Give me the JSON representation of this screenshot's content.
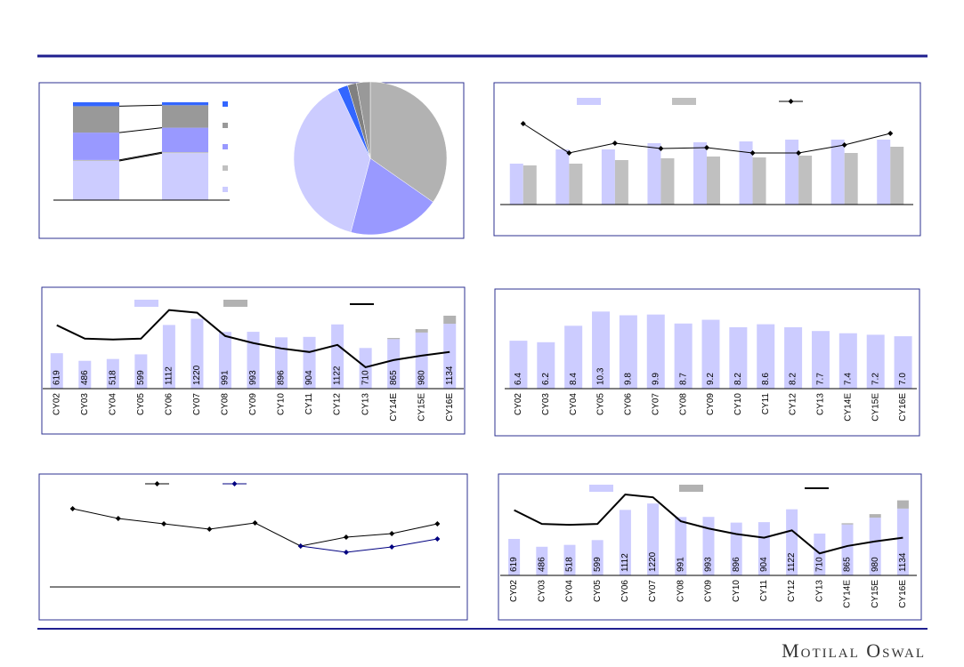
{
  "footer": {
    "brand": "Motilal Oswal"
  },
  "chart_data": [
    {
      "type": "stacked_bar",
      "categories": [
        null,
        null
      ],
      "ylim": [
        0,
        100
      ],
      "legend": true,
      "series": [
        {
          "color": "#ccccff",
          "values": [
            40,
            48
          ]
        },
        {
          "color": "#c0c0c0",
          "values": [
            1,
            1
          ]
        },
        {
          "color": "#9999ff",
          "values": [
            28,
            25
          ]
        },
        {
          "color": "#999999",
          "values": [
            27,
            23
          ]
        },
        {
          "color": "#3366ff",
          "values": [
            4,
            3
          ]
        }
      ]
    },
    {
      "type": "pie",
      "values": [
        34.7,
        19.4,
        38.9,
        2.2,
        1.9,
        2.9
      ],
      "colors": [
        "#b2b2b2",
        "#9999ff",
        "#ccccff",
        "#3366ff",
        "#808080",
        "#999999"
      ]
    },
    {
      "type": "combo",
      "categories": [
        null,
        null,
        null,
        null,
        null,
        null,
        null,
        null,
        null
      ],
      "ylim": [
        0,
        100
      ],
      "stacked": false,
      "legend": true,
      "series": [
        {
          "type": "bar",
          "color": "#ccccff",
          "values": [
            46,
            62,
            62,
            69,
            70,
            71,
            73,
            73,
            73
          ]
        },
        {
          "type": "bar",
          "color": "#c0c0c0",
          "values": [
            44,
            46,
            50,
            52,
            54,
            53,
            55,
            58,
            65
          ]
        },
        {
          "type": "line",
          "color": "#000000",
          "marker": true,
          "values": [
            91,
            58,
            69,
            63,
            64,
            58,
            58,
            67,
            80
          ]
        }
      ]
    },
    {
      "type": "combo",
      "categories": [
        "CY02",
        "CY03",
        "CY04",
        "CY05",
        "CY06",
        "CY07",
        "CY08",
        "CY09",
        "CY10",
        "CY11",
        "CY12",
        "CY13",
        "CY14E",
        "CY15E",
        "CY16E"
      ],
      "ylim": [
        0,
        1600
      ],
      "stacked": true,
      "legend": true,
      "series": [
        {
          "type": "bar",
          "color": "#ccccff",
          "data_labels": true,
          "values": [
            619,
            486,
            518,
            599,
            1112,
            1220,
            991,
            993,
            896,
            904,
            1122,
            710,
            865,
            980,
            1134
          ]
        },
        {
          "type": "bar",
          "color": "#b2b2b2",
          "values": [
            null,
            null,
            null,
            null,
            null,
            null,
            null,
            null,
            null,
            null,
            null,
            null,
            20,
            60,
            140
          ]
        },
        {
          "type": "line",
          "color": "#000000",
          "marker": false,
          "values": [
            1108,
            873,
            858,
            873,
            1373,
            1326,
            920,
            796,
            702,
            640,
            764,
            374,
            499,
            577,
            640
          ]
        }
      ]
    },
    {
      "type": "combo",
      "categories": [
        "CY02",
        "CY03",
        "CY04",
        "CY05",
        "CY06",
        "CY07",
        "CY08",
        "CY09",
        "CY10",
        "CY11",
        "CY12",
        "CY13",
        "CY14E",
        "CY15E",
        "CY16E"
      ],
      "ylim": [
        0,
        12
      ],
      "stacked": false,
      "legend": false,
      "series": [
        {
          "type": "bar",
          "color": "#ccccff",
          "data_labels": true,
          "values": [
            6.4,
            6.2,
            8.4,
            10.3,
            9.8,
            9.9,
            8.7,
            9.2,
            8.2,
            8.6,
            8.2,
            7.7,
            7.4,
            7.2,
            7
          ],
          "value_labels": [
            "6.4",
            "6.2",
            "8.4",
            "10.3",
            "9.8",
            "9.9",
            "8.7",
            "9.2",
            "8.2",
            "8.6",
            "8.2",
            "7.7",
            "7.4",
            "7.2",
            "7.0"
          ]
        }
      ]
    },
    {
      "type": "combo",
      "categories": [
        null,
        null,
        null,
        null,
        null,
        null,
        null,
        null,
        null
      ],
      "ylim": [
        0,
        100
      ],
      "stacked": false,
      "legend": true,
      "series": [
        {
          "type": "line",
          "color": "#000000",
          "marker": true,
          "values": [
            88,
            77,
            71,
            65,
            72,
            46,
            56,
            60,
            71
          ]
        },
        {
          "type": "line",
          "color": "#000080",
          "marker": true,
          "values": [
            null,
            null,
            null,
            null,
            null,
            46,
            39,
            45,
            54
          ]
        }
      ]
    },
    {
      "type": "combo",
      "categories": [
        "CY02",
        "CY03",
        "CY04",
        "CY05",
        "CY06",
        "CY07",
        "CY08",
        "CY09",
        "CY10",
        "CY11",
        "CY12",
        "CY13",
        "CY14E",
        "CY15E",
        "CY16E"
      ],
      "ylim": [
        0,
        1600
      ],
      "stacked": true,
      "legend": true,
      "series": [
        {
          "type": "bar",
          "color": "#ccccff",
          "data_labels": true,
          "values": [
            619,
            486,
            518,
            599,
            1112,
            1220,
            991,
            993,
            896,
            904,
            1122,
            710,
            865,
            980,
            1134
          ]
        },
        {
          "type": "bar",
          "color": "#b2b2b2",
          "values": [
            null,
            null,
            null,
            null,
            null,
            null,
            null,
            null,
            null,
            null,
            null,
            null,
            20,
            60,
            140
          ]
        },
        {
          "type": "line",
          "color": "#000000",
          "marker": false,
          "values": [
            1108,
            873,
            858,
            873,
            1373,
            1326,
            920,
            796,
            702,
            640,
            764,
            374,
            499,
            577,
            640
          ]
        }
      ]
    }
  ]
}
